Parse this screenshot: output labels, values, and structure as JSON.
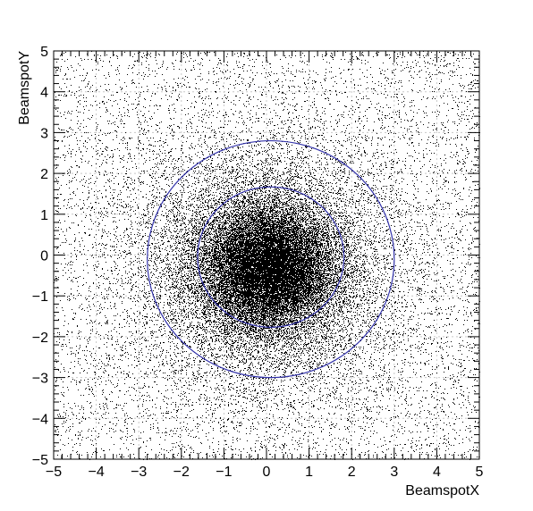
{
  "chart_data": {
    "type": "scatter",
    "xlabel": "BeamspotX",
    "ylabel": "BeamspotY",
    "xlim": [
      -5,
      5
    ],
    "ylim": [
      -5,
      5
    ],
    "xticks": [
      -5,
      -4,
      -3,
      -2,
      -1,
      0,
      1,
      2,
      3,
      4,
      5
    ],
    "yticks": [
      -5,
      -4,
      -3,
      -2,
      -1,
      0,
      1,
      2,
      3,
      4,
      5
    ],
    "xtick_labels": [
      "−5",
      "−4",
      "−3",
      "−2",
      "−1",
      "0",
      "1",
      "2",
      "3",
      "4",
      "5"
    ],
    "ytick_labels": [
      "−5",
      "−4",
      "−3",
      "−2",
      "−1",
      "0",
      "1",
      "2",
      "3",
      "4",
      "5"
    ],
    "grid": true,
    "distribution": {
      "kind": "sampled-2d-density",
      "center": [
        0,
        -0.3
      ],
      "core_sigma": 0.75,
      "halo_sigma": 1.6,
      "uniform_background": true
    },
    "overlays": [
      {
        "type": "circle",
        "center": [
          0.1,
          -0.1
        ],
        "radius": 2.9,
        "color": "#3333aa"
      },
      {
        "type": "circle",
        "center": [
          0.1,
          -0.05
        ],
        "radius": 1.72,
        "color": "#3333aa"
      }
    ],
    "point_color": "#000000"
  }
}
